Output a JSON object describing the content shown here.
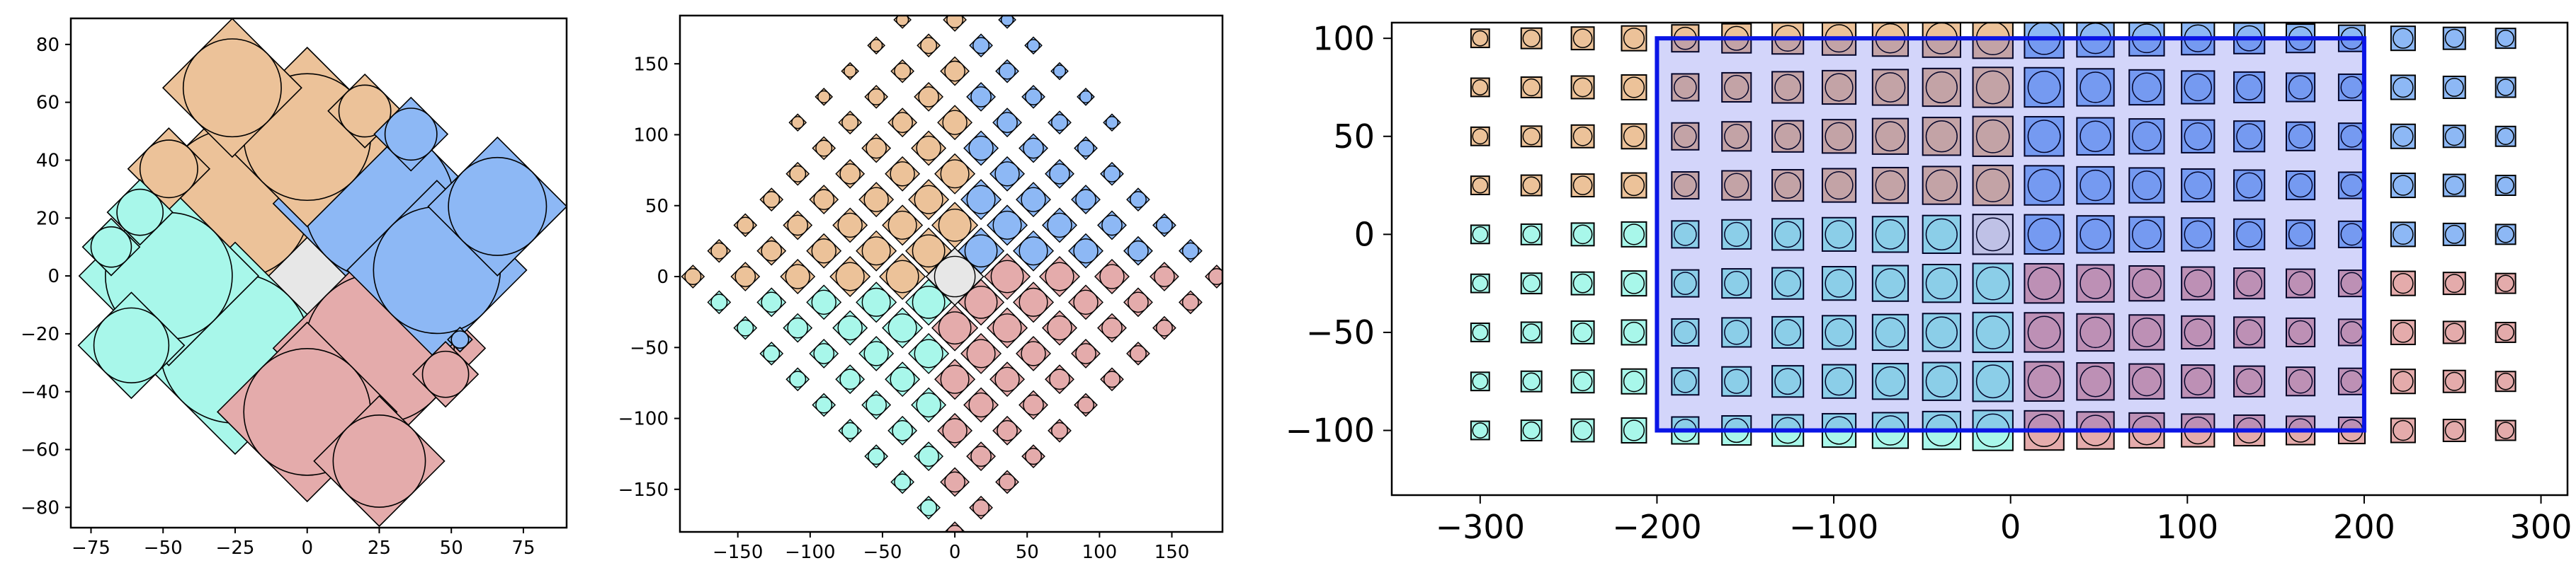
{
  "colors": {
    "peach": "#ECC299",
    "blue": "#8DB8F5",
    "pink": "#E4ABAB",
    "cyan": "#A8F7EA",
    "grey": "#E7E7E7",
    "rect": "#0A15E6",
    "edge": "#000000"
  },
  "chart_data": [
    {
      "type": "scatter",
      "xlim": [
        -82,
        90
      ],
      "ylim": [
        -87,
        89
      ],
      "x_ticks": [
        "−75",
        "−50",
        "−25",
        "0",
        "25",
        "50",
        "75"
      ],
      "x_tick_values": [
        -75,
        -50,
        -25,
        0,
        25,
        50,
        75
      ],
      "y_ticks": [
        "−80",
        "−60",
        "−40",
        "−20",
        "0",
        "20",
        "40",
        "60",
        "80"
      ],
      "y_tick_values": [
        -80,
        -60,
        -40,
        -20,
        0,
        20,
        40,
        60,
        80
      ],
      "grid": false,
      "points": [
        {
          "x": 0,
          "y": 0,
          "size": 26,
          "color": "grey"
        },
        {
          "x": -25,
          "y": 25,
          "size": 26,
          "color": "peach"
        },
        {
          "x": 25,
          "y": 25,
          "size": 26,
          "color": "blue"
        },
        {
          "x": -25,
          "y": -25,
          "size": 26,
          "color": "cyan"
        },
        {
          "x": 25,
          "y": -25,
          "size": 26,
          "color": "pink"
        },
        {
          "x": 0,
          "y": 48,
          "size": 22,
          "color": "peach"
        },
        {
          "x": 45,
          "y": 2,
          "size": 22,
          "color": "blue"
        },
        {
          "x": -48,
          "y": 0,
          "size": 22,
          "color": "cyan"
        },
        {
          "x": 0,
          "y": -47,
          "size": 22,
          "color": "pink"
        },
        {
          "x": -26,
          "y": 65,
          "size": 17,
          "color": "peach"
        },
        {
          "x": 66,
          "y": 24,
          "size": 17,
          "color": "blue"
        },
        {
          "x": -61,
          "y": -24,
          "size": 13,
          "color": "cyan"
        },
        {
          "x": 25,
          "y": -64,
          "size": 16,
          "color": "pink"
        },
        {
          "x": 20,
          "y": 57,
          "size": 9,
          "color": "peach"
        },
        {
          "x": -48,
          "y": 37,
          "size": 10,
          "color": "peach"
        },
        {
          "x": 36,
          "y": 49,
          "size": 9,
          "color": "blue"
        },
        {
          "x": -58,
          "y": 22,
          "size": 8,
          "color": "cyan"
        },
        {
          "x": -68,
          "y": 10,
          "size": 7,
          "color": "cyan"
        },
        {
          "x": 48,
          "y": -34,
          "size": 8,
          "color": "pink"
        },
        {
          "x": 53,
          "y": -22,
          "size": 3,
          "color": "blue"
        }
      ]
    },
    {
      "type": "scatter",
      "xlim": [
        -190,
        185
      ],
      "ylim": [
        -180,
        184
      ],
      "x_ticks": [
        "−150",
        "−100",
        "−50",
        "0",
        "50",
        "100",
        "150"
      ],
      "x_tick_values": [
        -150,
        -100,
        -50,
        0,
        50,
        100,
        150
      ],
      "y_ticks": [
        "−150",
        "−100",
        "−50",
        "0",
        "50",
        "100",
        "150"
      ],
      "y_tick_values": [
        -150,
        -100,
        -50,
        0,
        50,
        100,
        150
      ],
      "grid": false,
      "layout": "rotated square lattice (45°) of circles in diamonds",
      "center": {
        "x": 0,
        "y": 0,
        "size": 14,
        "color": "grey"
      },
      "quadrants": [
        {
          "direction": "upper-left",
          "color": "peach"
        },
        {
          "direction": "upper-right",
          "color": "blue"
        },
        {
          "direction": "lower-left",
          "color": "cyan"
        },
        {
          "direction": "lower-right",
          "color": "pink"
        }
      ]
    },
    {
      "type": "scatter",
      "xlim": [
        -350,
        315
      ],
      "ylim": [
        -133,
        108
      ],
      "x_ticks": [
        "−300",
        "−200",
        "−100",
        "0",
        "100",
        "200",
        "300"
      ],
      "x_tick_values": [
        -300,
        -200,
        -100,
        0,
        100,
        200,
        300
      ],
      "y_ticks": [
        "−100",
        "−50",
        "0",
        "50",
        "100"
      ],
      "y_tick_values": [
        -100,
        -50,
        0,
        50,
        100
      ],
      "grid": false,
      "layout": "rows of circles in squares, size shrinking toward the ends",
      "quadrant_colors": {
        "upper-left": "peach",
        "upper-right": "blue",
        "lower-left": "cyan",
        "lower-right": "pink",
        "center": "grey"
      },
      "rectangle": {
        "x0": -200,
        "y0": -100,
        "x1": 200,
        "y1": 100,
        "color": "rect"
      }
    }
  ]
}
